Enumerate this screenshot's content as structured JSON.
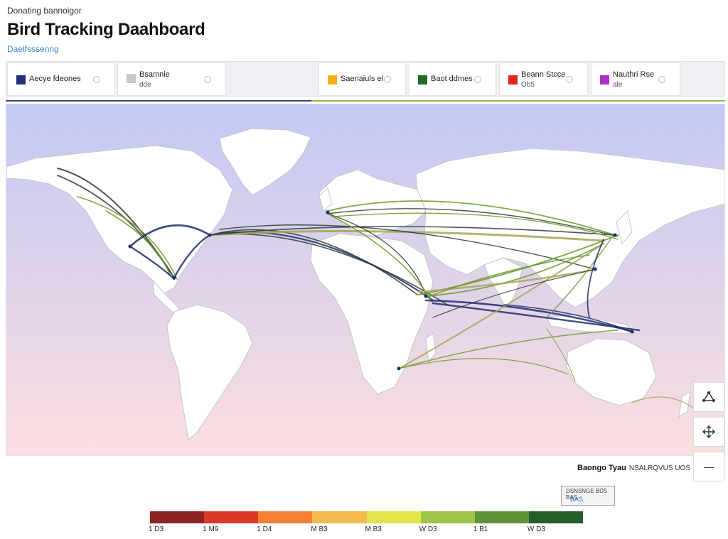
{
  "header": {
    "kicker": "Donating bannoigor",
    "title": "Bird Tracking Daahboard",
    "link": "Daelfsssenng"
  },
  "legend": [
    {
      "label": "Aecye fdeones",
      "sub": "",
      "color": "#22307a"
    },
    {
      "label": "Bsamnie",
      "sub": "dde",
      "color": "#c9c9c9"
    },
    {
      "label": "Saenaiuls el",
      "sub": "",
      "color": "#f2b118"
    },
    {
      "label": "Baot ddmes",
      "sub": "",
      "color": "#1f6a2a"
    },
    {
      "label": "Beann Stcce",
      "sub": "Ob5",
      "color": "#e02424"
    },
    {
      "label": "Nauthri Rse",
      "sub": "ale",
      "color": "#b030c8"
    }
  ],
  "colors": {
    "ocean_top": "#c2c8f4",
    "ocean_bottom": "#fcdedf",
    "land": "#ffffff",
    "border": "#c4c7cf",
    "route_navy": "#1e2f6e",
    "route_green": "#6a9a28",
    "route_dark": "#2b3a2f",
    "route_olive": "#a8a454"
  },
  "controls": {
    "layer_icon": "triangle-nodes-icon",
    "move_icon": "move-arrows-icon",
    "zoom_icon": "minus-icon",
    "zoom_symbol": "—",
    "label": "Baongo Tyau",
    "label_sub": "NSALRQVUS UOS",
    "mini_top": "DSNSNGE BDS BAS",
    "mini_value": "BAS"
  },
  "scale": {
    "colors": [
      "#8d2323",
      "#db3a2a",
      "#f57f35",
      "#f2ba4d",
      "#e1e44b",
      "#9cc449",
      "#5e9437",
      "#265d2b"
    ],
    "labels": [
      "1 D3",
      "1 M9",
      "1 D4",
      "M B3",
      "M B3",
      "W D3",
      "1 B1",
      "W D3"
    ]
  }
}
